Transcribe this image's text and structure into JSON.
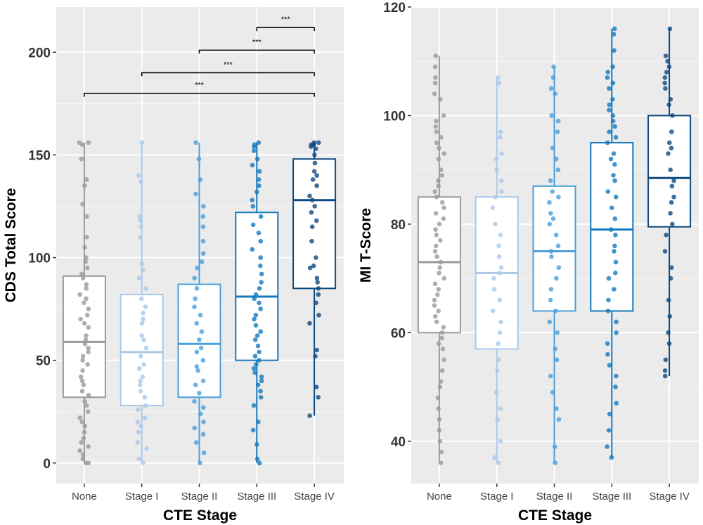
{
  "chart_data": [
    {
      "type": "box",
      "xlabel": "CTE Stage",
      "ylabel": "CDS Total Score",
      "categories": [
        "None",
        "Stage I",
        "Stage II",
        "Stage III",
        "Stage IV"
      ],
      "colors": [
        "#9a9a9a",
        "#a9c9e8",
        "#4a9fdc",
        "#1479bd",
        "#0e4a80"
      ],
      "ylim": [
        -10,
        222
      ],
      "yticks": [
        0,
        50,
        100,
        150,
        200
      ],
      "grid": true,
      "boxes": [
        {
          "q1": 32,
          "median": 59,
          "q3": 91,
          "whisker_low": 0,
          "whisker_high": 156
        },
        {
          "q1": 28,
          "median": 54,
          "q3": 82,
          "whisker_low": 0,
          "whisker_high": 156
        },
        {
          "q1": 32,
          "median": 58,
          "q3": 87,
          "whisker_low": 0,
          "whisker_high": 156
        },
        {
          "q1": 50,
          "median": 81,
          "q3": 122,
          "whisker_low": 0,
          "whisker_high": 156
        },
        {
          "q1": 85,
          "median": 128,
          "q3": 148,
          "whisker_low": 23,
          "whisker_high": 156
        }
      ],
      "points": [
        [
          156,
          156,
          155,
          148,
          138,
          135,
          126,
          120,
          110,
          105,
          100,
          98,
          95,
          92,
          90,
          87,
          85,
          82,
          80,
          78,
          75,
          72,
          70,
          68,
          66,
          62,
          60,
          58,
          56,
          54,
          52,
          50,
          48,
          45,
          42,
          40,
          38,
          35,
          33,
          30,
          28,
          25,
          22,
          20,
          18,
          15,
          12,
          10,
          8,
          6,
          4,
          2,
          0,
          0
        ],
        [
          156,
          140,
          137,
          120,
          118,
          115,
          110,
          97,
          94,
          90,
          85,
          80,
          76,
          73,
          70,
          68,
          62,
          60,
          56,
          52,
          48,
          46,
          42,
          40,
          38,
          35,
          32,
          28,
          26,
          22,
          20,
          18,
          15,
          10,
          7,
          2,
          0
        ],
        [
          156,
          148,
          138,
          131,
          125,
          120,
          115,
          108,
          102,
          98,
          95,
          90,
          85,
          80,
          76,
          72,
          68,
          64,
          60,
          56,
          54,
          50,
          47,
          45,
          40,
          38,
          34,
          30,
          27,
          24,
          20,
          17,
          14,
          10,
          5,
          0
        ],
        [
          156,
          155,
          154,
          152,
          148,
          145,
          142,
          138,
          135,
          132,
          128,
          125,
          120,
          116,
          112,
          108,
          104,
          100,
          96,
          92,
          88,
          85,
          82,
          80,
          78,
          75,
          72,
          70,
          67,
          64,
          62,
          60,
          57,
          54,
          52,
          50,
          48,
          46,
          44,
          42,
          40,
          38,
          35,
          32,
          28,
          20,
          16,
          9,
          2,
          0
        ],
        [
          156,
          156,
          155,
          155,
          154,
          153,
          150,
          146,
          142,
          140,
          138,
          135,
          130,
          128,
          125,
          122,
          118,
          115,
          108,
          100,
          96,
          95,
          90,
          88,
          85,
          82,
          78,
          72,
          68,
          55,
          52,
          37,
          32,
          23
        ]
      ],
      "significance": [
        {
          "from": "None",
          "to": "Stage IV",
          "y": 180,
          "label": "***"
        },
        {
          "from": "Stage I",
          "to": "Stage IV",
          "y": 190,
          "label": "***"
        },
        {
          "from": "Stage II",
          "to": "Stage IV",
          "y": 201,
          "label": "***"
        },
        {
          "from": "Stage III",
          "to": "Stage IV",
          "y": 212,
          "label": "***"
        }
      ]
    },
    {
      "type": "box",
      "xlabel": "CTE Stage",
      "ylabel": "MI T-Score",
      "categories": [
        "None",
        "Stage I",
        "Stage II",
        "Stage III",
        "Stage IV"
      ],
      "colors": [
        "#9a9a9a",
        "#a9c9e8",
        "#4a9fdc",
        "#1479bd",
        "#0e4a80"
      ],
      "ylim": [
        32.2,
        120
      ],
      "yticks": [
        40,
        60,
        80,
        100,
        120
      ],
      "grid": true,
      "boxes": [
        {
          "q1": 60,
          "median": 73,
          "q3": 85,
          "whisker_low": 36,
          "whisker_high": 111
        },
        {
          "q1": 57,
          "median": 71,
          "q3": 85,
          "whisker_low": 36,
          "whisker_high": 107
        },
        {
          "q1": 64,
          "median": 75,
          "q3": 87,
          "whisker_low": 36,
          "whisker_high": 109
        },
        {
          "q1": 64,
          "median": 79,
          "q3": 95,
          "whisker_low": 37,
          "whisker_high": 116
        },
        {
          "q1": 79.5,
          "median": 88.5,
          "q3": 100,
          "whisker_low": 52,
          "whisker_high": 116
        }
      ],
      "points": [
        [
          111,
          109,
          107,
          106,
          104,
          103,
          100,
          99,
          98,
          97,
          96,
          95,
          94,
          93,
          92,
          90,
          89,
          88,
          87,
          86,
          85,
          84,
          83,
          82,
          81,
          80,
          79,
          78,
          77,
          76,
          75,
          74,
          73,
          72,
          71,
          70,
          69,
          68,
          67,
          66,
          65,
          64,
          63,
          62,
          61,
          60,
          59,
          58,
          57,
          55,
          53,
          51,
          50,
          48,
          46,
          44,
          42,
          40,
          38,
          36
        ],
        [
          107,
          106,
          97,
          96,
          93,
          92,
          90,
          88,
          86,
          85,
          83,
          80,
          78,
          76,
          74,
          72,
          71,
          70,
          68,
          66,
          64,
          62,
          60,
          58,
          55,
          53,
          49,
          46,
          44,
          40,
          37,
          36
        ],
        [
          109,
          107,
          105,
          104,
          100,
          99,
          97,
          94,
          92,
          90,
          88,
          86,
          85,
          84,
          82,
          81,
          80,
          78,
          76,
          75,
          74,
          72,
          70,
          68,
          66,
          64,
          62,
          60,
          57,
          55,
          52,
          49,
          46,
          44,
          39,
          36
        ],
        [
          116,
          115,
          112,
          109,
          108,
          107,
          106,
          105,
          103,
          102,
          101,
          100,
          99,
          98,
          97,
          96,
          95,
          93,
          92,
          91,
          89,
          88,
          86,
          85,
          83,
          81,
          79,
          78,
          76,
          75,
          73,
          71,
          70,
          68,
          66,
          64,
          62,
          60,
          58,
          56,
          54,
          52,
          50,
          47,
          45,
          42,
          39,
          37
        ],
        [
          116,
          111,
          110,
          109,
          108,
          107,
          106,
          105,
          103,
          102,
          100,
          97,
          95,
          94,
          93,
          90,
          88,
          87,
          85,
          84,
          82,
          80,
          78,
          75,
          72,
          70,
          66,
          63,
          60,
          58,
          55,
          53,
          52
        ]
      ],
      "significance": []
    }
  ]
}
